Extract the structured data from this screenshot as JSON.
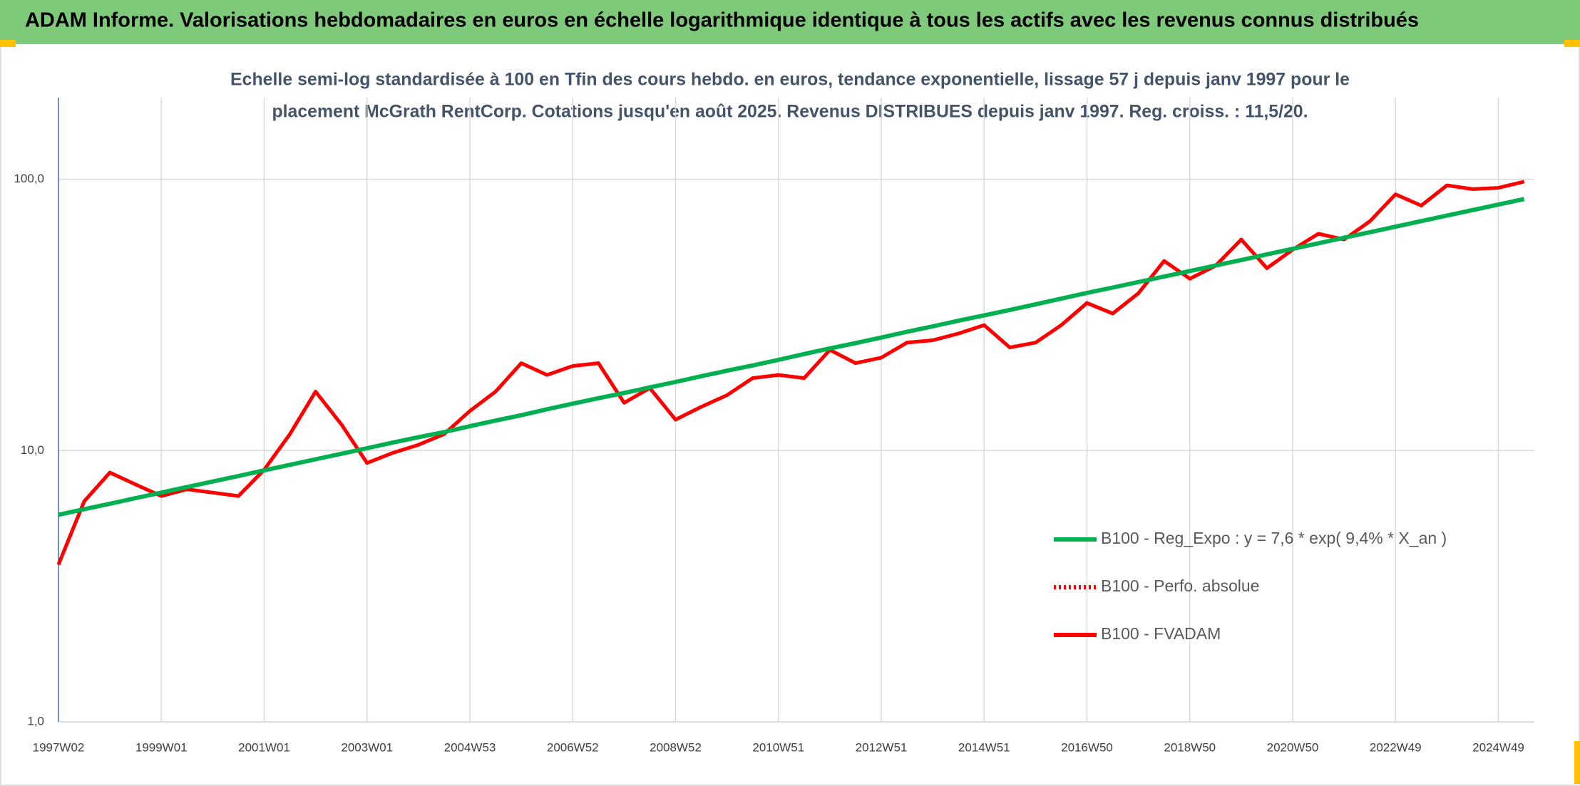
{
  "chart_data": {
    "type": "line",
    "title": "ADAM Informe. Valorisations hebdomadaires en euros en échelle logarithmique identique à tous les actifs avec les revenus connus distribués",
    "subtitle": [
      "Echelle semi-log standardisée à 100 en Tfin des cours hebdo. en euros, tendance exponentielle, lissage 57 j depuis janv 1997 pour le",
      "placement McGrath RentCorp. Cotations jusqu'en août 2025. Revenus DISTRIBUES depuis janv 1997. Reg. croiss. : 11,5/20."
    ],
    "categories": [
      "1997W02",
      null,
      null,
      null,
      "1999W01",
      null,
      null,
      null,
      "2001W01",
      null,
      null,
      null,
      "2003W01",
      null,
      null,
      null,
      "2004W53",
      null,
      null,
      null,
      "2006W52",
      null,
      null,
      null,
      "2008W52",
      null,
      null,
      null,
      "2010W51",
      null,
      null,
      null,
      "2012W51",
      null,
      null,
      null,
      "2014W51",
      null,
      null,
      null,
      "2016W50",
      null,
      null,
      null,
      "2018W50",
      null,
      null,
      null,
      "2020W50",
      null,
      null,
      null,
      "2022W49",
      null,
      null,
      null,
      "2024W49",
      null
    ],
    "series": [
      {
        "name": "B100 - Reg_Expo : y = 7,6 * exp( 9,4% *  X_an )",
        "color": "#00b050",
        "style": "solid",
        "values": [
          5.8,
          6.08,
          6.37,
          6.68,
          7.0,
          7.34,
          7.69,
          8.06,
          8.45,
          8.86,
          9.29,
          9.73,
          10.2,
          10.7,
          11.2,
          11.7,
          12.3,
          12.9,
          13.5,
          14.2,
          14.9,
          15.6,
          16.3,
          17.1,
          17.9,
          18.8,
          19.7,
          20.6,
          21.6,
          22.7,
          23.8,
          24.9,
          26.1,
          27.4,
          28.7,
          30.1,
          31.5,
          33.0,
          34.6,
          36.3,
          38.1,
          39.9,
          41.8,
          43.8,
          45.9,
          48.1,
          50.4,
          52.9,
          55.4,
          58.1,
          60.9,
          63.8,
          66.9,
          70.1,
          73.5,
          77.0,
          80.7,
          84.6
        ]
      },
      {
        "name": "B100 - Perfo. absolue",
        "color": "#ff0000",
        "style": "dotted",
        "values": [
          3.8,
          6.5,
          8.3,
          7.5,
          6.8,
          7.2,
          7.0,
          6.8,
          8.5,
          11.5,
          16.5,
          12.5,
          9.0,
          9.8,
          10.5,
          11.5,
          14.0,
          16.5,
          21.0,
          19.0,
          20.5,
          21.0,
          15.0,
          17.0,
          13.0,
          14.5,
          16.0,
          18.5,
          19.0,
          18.5,
          23.5,
          21.0,
          22.0,
          25.0,
          25.5,
          27.0,
          29.0,
          24.0,
          25.0,
          29.0,
          35.0,
          32.0,
          38.0,
          50.0,
          43.0,
          48.0,
          60.0,
          47.0,
          55.0,
          63.0,
          60.0,
          70.0,
          88.0,
          80.0,
          95.0,
          92.0,
          93.0,
          98.0
        ]
      },
      {
        "name": "B100 - FVADAM",
        "color": "#ff0000",
        "style": "solid",
        "values": [
          3.8,
          6.5,
          8.3,
          7.5,
          6.8,
          7.2,
          7.0,
          6.8,
          8.5,
          11.5,
          16.5,
          12.5,
          9.0,
          9.8,
          10.5,
          11.5,
          14.0,
          16.5,
          21.0,
          19.0,
          20.5,
          21.0,
          15.0,
          17.0,
          13.0,
          14.5,
          16.0,
          18.5,
          19.0,
          18.5,
          23.5,
          21.0,
          22.0,
          25.0,
          25.5,
          27.0,
          29.0,
          24.0,
          25.0,
          29.0,
          35.0,
          32.0,
          38.0,
          50.0,
          43.0,
          48.0,
          60.0,
          47.0,
          55.0,
          63.0,
          60.0,
          70.0,
          88.0,
          80.0,
          95.0,
          92.0,
          93.0,
          98.0
        ]
      }
    ],
    "ylim": [
      1,
      200
    ],
    "yticks": [
      {
        "value": 1,
        "label": "1,0"
      },
      {
        "value": 10,
        "label": "10,0"
      },
      {
        "value": 100,
        "label": "100,0"
      }
    ],
    "log_y": true,
    "grid": true,
    "legend": "right"
  }
}
